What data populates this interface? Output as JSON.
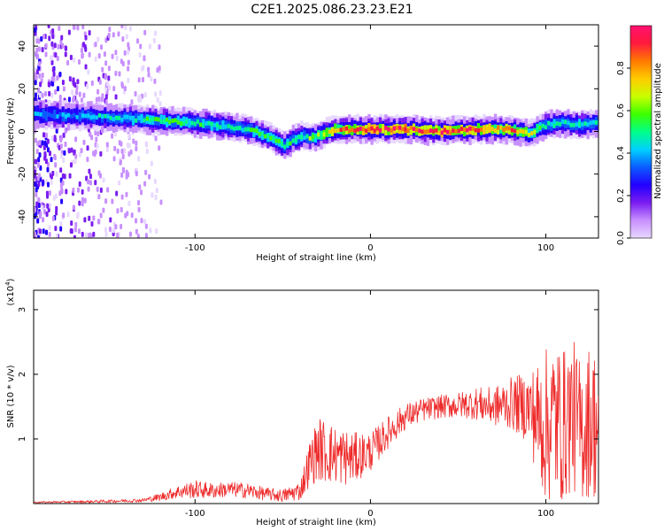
{
  "title": "C2E1.2025.086.23.23.E21",
  "colors": {
    "snr_line": "#ee2a2a",
    "background": "#ffffff",
    "axis": "#000000",
    "colormap": [
      "#e8d8ff",
      "#c890ff",
      "#7a1cf0",
      "#2200ff",
      "#0a5cff",
      "#00d0ff",
      "#00ff88",
      "#3cff00",
      "#c8ff00",
      "#ffcc00",
      "#ff7a00",
      "#ff1a3c",
      "#ff1070"
    ]
  },
  "chart_data": [
    {
      "type": "heatmap",
      "xlabel": "Height of straight line (km)",
      "ylabel": "Frequency (Hz)",
      "xlim": [
        -192,
        130
      ],
      "ylim": [
        -50,
        50
      ],
      "x_ticks": [
        -100,
        0,
        100
      ],
      "x_tick_labels": [
        "-100",
        "0",
        "100"
      ],
      "y_ticks": [
        -40,
        -20,
        0,
        20,
        40
      ],
      "y_tick_labels": [
        "-40",
        "-20",
        "0",
        "20",
        "40"
      ],
      "colorbar": {
        "label": "Normalized spectral amplitude",
        "range": [
          0,
          1
        ],
        "ticks": [
          0.0,
          0.2,
          0.4,
          0.6,
          0.8
        ],
        "tick_labels": [
          "0.0",
          "0.2",
          "0.4",
          "0.6",
          "0.8"
        ]
      },
      "ridge": {
        "x": [
          -190,
          -160,
          -140,
          -120,
          -100,
          -80,
          -70,
          -60,
          -55,
          -50,
          -45,
          -40,
          -35,
          -30,
          -25,
          -20,
          -10,
          0,
          20,
          40,
          60,
          80,
          90,
          100,
          110,
          120,
          130
        ],
        "freq": [
          8,
          7,
          6,
          5,
          4,
          2,
          1,
          -2,
          -4,
          -7,
          -4,
          -2,
          -3,
          -2,
          0,
          1,
          1,
          1,
          1,
          0,
          1,
          1,
          -1,
          3,
          4,
          3,
          4
        ],
        "amplitude": [
          0.35,
          0.4,
          0.45,
          0.55,
          0.5,
          0.45,
          0.5,
          0.55,
          0.6,
          0.55,
          0.5,
          0.5,
          0.55,
          0.6,
          0.7,
          0.8,
          0.85,
          0.9,
          0.92,
          0.9,
          0.85,
          0.8,
          0.65,
          0.5,
          0.45,
          0.45,
          0.45
        ]
      },
      "noise_region_x": [
        -192,
        -130
      ]
    },
    {
      "type": "line",
      "xlabel": "Height of straight line (km)",
      "ylabel": "SNR (10 * v/v)",
      "y_multiplier": "(x10",
      "y_multiplier_exp": "4",
      "y_multiplier_close": ")",
      "xlim": [
        -192,
        130
      ],
      "ylim": [
        0,
        3.3
      ],
      "x_ticks": [
        -100,
        0,
        100
      ],
      "x_tick_labels": [
        "-100",
        "0",
        "100"
      ],
      "y_ticks": [
        1,
        2,
        3
      ],
      "y_tick_labels": [
        "1",
        "2",
        "3"
      ],
      "series": [
        {
          "x": [
            -192,
            -160,
            -130,
            -120,
            -110,
            -100,
            -90,
            -80,
            -70,
            -60,
            -50,
            -40,
            -35,
            -30,
            -25,
            -20,
            -15,
            -10,
            -5,
            0,
            10,
            20,
            30,
            40,
            50,
            60,
            70,
            80,
            90,
            95,
            100,
            105,
            110,
            115,
            120,
            125,
            130
          ],
          "y": [
            0.02,
            0.03,
            0.05,
            0.1,
            0.18,
            0.22,
            0.2,
            0.22,
            0.2,
            0.15,
            0.12,
            0.2,
            0.6,
            0.85,
            0.8,
            0.75,
            0.72,
            0.7,
            0.75,
            0.8,
            1.1,
            1.35,
            1.45,
            1.5,
            1.52,
            1.55,
            1.5,
            1.55,
            1.5,
            1.3,
            1.2,
            1.3,
            1.2,
            1.4,
            1.1,
            1.3,
            1.2
          ],
          "spread": [
            0.01,
            0.02,
            0.03,
            0.06,
            0.1,
            0.14,
            0.12,
            0.12,
            0.12,
            0.1,
            0.1,
            0.15,
            0.35,
            0.5,
            0.5,
            0.45,
            0.45,
            0.4,
            0.35,
            0.3,
            0.25,
            0.2,
            0.18,
            0.18,
            0.2,
            0.25,
            0.3,
            0.4,
            0.55,
            0.9,
            1.2,
            1.3,
            1.2,
            1.2,
            1.1,
            1.2,
            1.2
          ]
        }
      ]
    }
  ]
}
